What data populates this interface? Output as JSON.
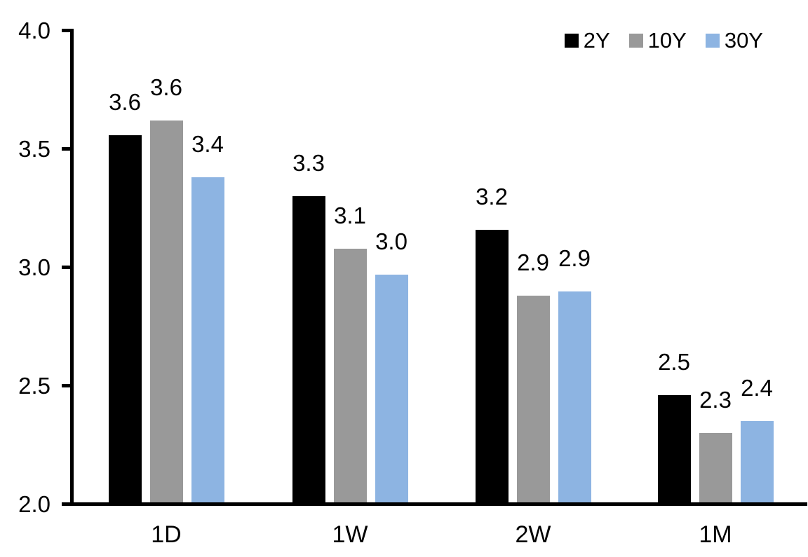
{
  "chart_data": {
    "type": "bar",
    "title": "",
    "categories": [
      "1D",
      "1W",
      "2W",
      "1M"
    ],
    "series": [
      {
        "name": "2Y",
        "color": "#000000",
        "values": [
          3.56,
          3.3,
          3.16,
          2.46
        ],
        "bar_labels": [
          "3.6",
          "3.3",
          "3.2",
          "2.5"
        ]
      },
      {
        "name": "10Y",
        "color": "#999999",
        "values": [
          3.62,
          3.08,
          2.88,
          2.3
        ],
        "bar_labels": [
          "3.6",
          "3.1",
          "2.9",
          "2.3"
        ]
      },
      {
        "name": "30Y",
        "color": "#8DB4E2",
        "values": [
          3.38,
          2.97,
          2.9,
          2.35
        ],
        "bar_labels": [
          "3.4",
          "3.0",
          "2.9",
          "2.4"
        ]
      }
    ],
    "xlabel": "",
    "ylabel": "",
    "ylim": [
      2.0,
      4.0
    ],
    "yticks": [
      "4.0",
      "3.5",
      "3.0",
      "2.5",
      "2.0"
    ],
    "grid": false,
    "legend_position": "top-right",
    "axis_color": "#000000",
    "text_color": "#000000",
    "background_color": "#FFFFFF"
  }
}
